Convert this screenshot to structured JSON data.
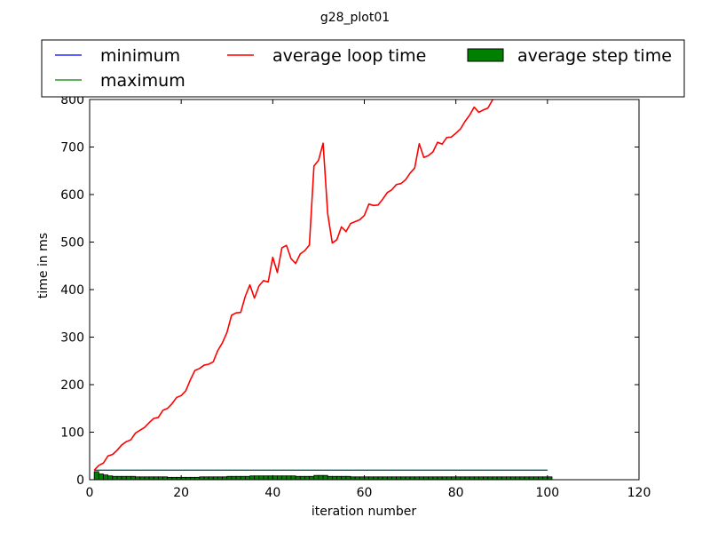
{
  "chart_data": {
    "type": "line",
    "title": "g28_plot01",
    "xlabel": "iteration number",
    "ylabel": "time in ms",
    "xlim": [
      0,
      120
    ],
    "ylim": [
      0,
      800
    ],
    "x_ticks": [
      "0",
      "20",
      "40",
      "60",
      "80",
      "100",
      "120"
    ],
    "y_ticks": [
      "0",
      "100",
      "200",
      "300",
      "400",
      "500",
      "600",
      "700",
      "800"
    ],
    "grid": false,
    "legend_position": "top",
    "series": [
      {
        "name": "minimum",
        "kind": "line",
        "color": "#0000ff",
        "x": [
          1,
          100
        ],
        "y": [
          20,
          20
        ]
      },
      {
        "name": "maximum",
        "kind": "line",
        "color": "#008000",
        "x": [
          1,
          100
        ],
        "y": [
          20,
          20
        ]
      },
      {
        "name": "average loop time",
        "kind": "line",
        "color": "#ff0000",
        "x": [
          1,
          2,
          3,
          4,
          5,
          6,
          7,
          8,
          9,
          10,
          11,
          12,
          13,
          14,
          15,
          16,
          17,
          18,
          19,
          20,
          21,
          22,
          23,
          24,
          25,
          26,
          27,
          28,
          29,
          30,
          31,
          32,
          33,
          34,
          35,
          36,
          37,
          38,
          39,
          40,
          41,
          42,
          43,
          44,
          45,
          46,
          47,
          48,
          49,
          50,
          51,
          52,
          53,
          54,
          55,
          56,
          57,
          58,
          59,
          60,
          61,
          62,
          63,
          64,
          65,
          66,
          67,
          68,
          69,
          70,
          71,
          72,
          73,
          74,
          75,
          76,
          77,
          78,
          79,
          80,
          81,
          82,
          83,
          84,
          85,
          86,
          87,
          88,
          89,
          90
        ],
        "y": [
          20,
          30,
          35,
          50,
          53,
          62,
          73,
          80,
          84,
          98,
          104,
          110,
          120,
          129,
          131,
          146,
          150,
          160,
          173,
          177,
          187,
          210,
          230,
          234,
          241,
          243,
          248,
          272,
          288,
          310,
          346,
          351,
          352,
          386,
          410,
          382,
          408,
          419,
          416,
          468,
          436,
          488,
          493,
          465,
          455,
          475,
          482,
          494,
          660,
          672,
          708,
          560,
          498,
          505,
          532,
          522,
          539,
          543,
          547,
          556,
          580,
          577,
          578,
          590,
          604,
          610,
          621,
          623,
          631,
          645,
          656,
          707,
          678,
          682,
          690,
          710,
          706,
          720,
          721,
          729,
          738,
          754,
          767,
          784,
          773,
          778,
          782,
          799,
          806,
          810
        ]
      },
      {
        "name": "average step time",
        "kind": "bar",
        "color": "#008000",
        "x": [
          1,
          2,
          3,
          4,
          5,
          6,
          7,
          8,
          9,
          10,
          11,
          12,
          13,
          14,
          15,
          16,
          17,
          18,
          19,
          20,
          21,
          22,
          23,
          24,
          25,
          26,
          27,
          28,
          29,
          30,
          31,
          32,
          33,
          34,
          35,
          36,
          37,
          38,
          39,
          40,
          41,
          42,
          43,
          44,
          45,
          46,
          47,
          48,
          49,
          50,
          51,
          52,
          53,
          54,
          55,
          56,
          57,
          58,
          59,
          60,
          61,
          62,
          63,
          64,
          65,
          66,
          67,
          68,
          69,
          70,
          71,
          72,
          73,
          74,
          75,
          76,
          77,
          78,
          79,
          80,
          81,
          82,
          83,
          84,
          85,
          86,
          87,
          88,
          89,
          90,
          91,
          92,
          93,
          94,
          95,
          96,
          97,
          98,
          99,
          100
        ],
        "y": [
          17,
          12,
          10,
          8,
          7,
          7,
          7,
          7,
          7,
          6,
          6,
          6,
          6,
          6,
          6,
          6,
          5,
          5,
          5,
          5,
          5,
          5,
          5,
          6,
          6,
          6,
          6,
          6,
          6,
          7,
          7,
          7,
          7,
          7,
          8,
          8,
          8,
          8,
          8,
          8,
          8,
          8,
          8,
          8,
          7,
          7,
          7,
          7,
          9,
          9,
          9,
          7,
          7,
          7,
          7,
          7,
          6,
          6,
          6,
          6,
          6,
          6,
          6,
          6,
          6,
          6,
          6,
          6,
          6,
          6,
          6,
          6,
          6,
          6,
          6,
          6,
          6,
          6,
          6,
          6,
          6,
          6,
          6,
          6,
          6,
          6,
          6,
          6,
          6,
          6,
          6,
          6,
          6,
          6,
          6,
          6,
          6,
          6,
          6,
          6
        ]
      }
    ]
  }
}
